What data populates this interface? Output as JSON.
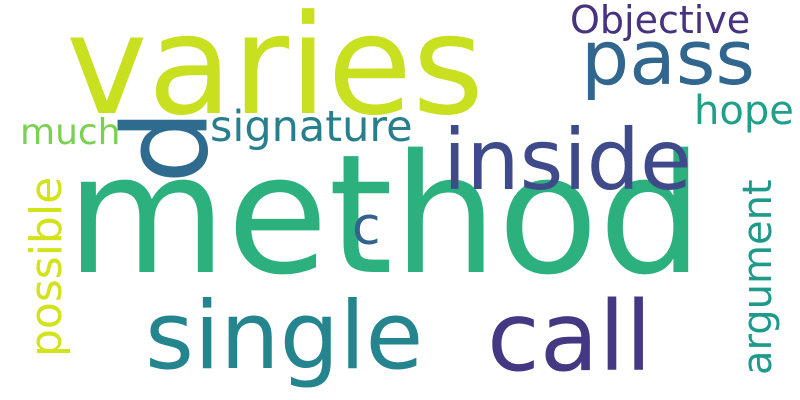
{
  "words": [
    {
      "id": "method",
      "text": "method",
      "color": "#2cb17e"
    },
    {
      "id": "varies",
      "text": "varies",
      "color": "#c8e020"
    },
    {
      "id": "single",
      "text": "single",
      "color": "#25858e"
    },
    {
      "id": "call",
      "text": "call",
      "color": "#453882"
    },
    {
      "id": "inside",
      "text": "inside",
      "color": "#3e4a89"
    },
    {
      "id": "pass",
      "text": "pass",
      "color": "#31668e"
    },
    {
      "id": "p",
      "text": "p",
      "color": "#2f6b8e"
    },
    {
      "id": "signature",
      "text": "signature",
      "color": "#277f8e"
    },
    {
      "id": "objective",
      "text": "Objective",
      "color": "#46327e"
    },
    {
      "id": "hope",
      "text": "hope",
      "color": "#1fa088"
    },
    {
      "id": "much",
      "text": "much",
      "color": "#7ad151"
    },
    {
      "id": "possible",
      "text": "possible",
      "color": "#d2e21b"
    },
    {
      "id": "argument",
      "text": "argument",
      "color": "#1f9a8a"
    },
    {
      "id": "c",
      "text": "c",
      "color": "#33638d"
    }
  ]
}
